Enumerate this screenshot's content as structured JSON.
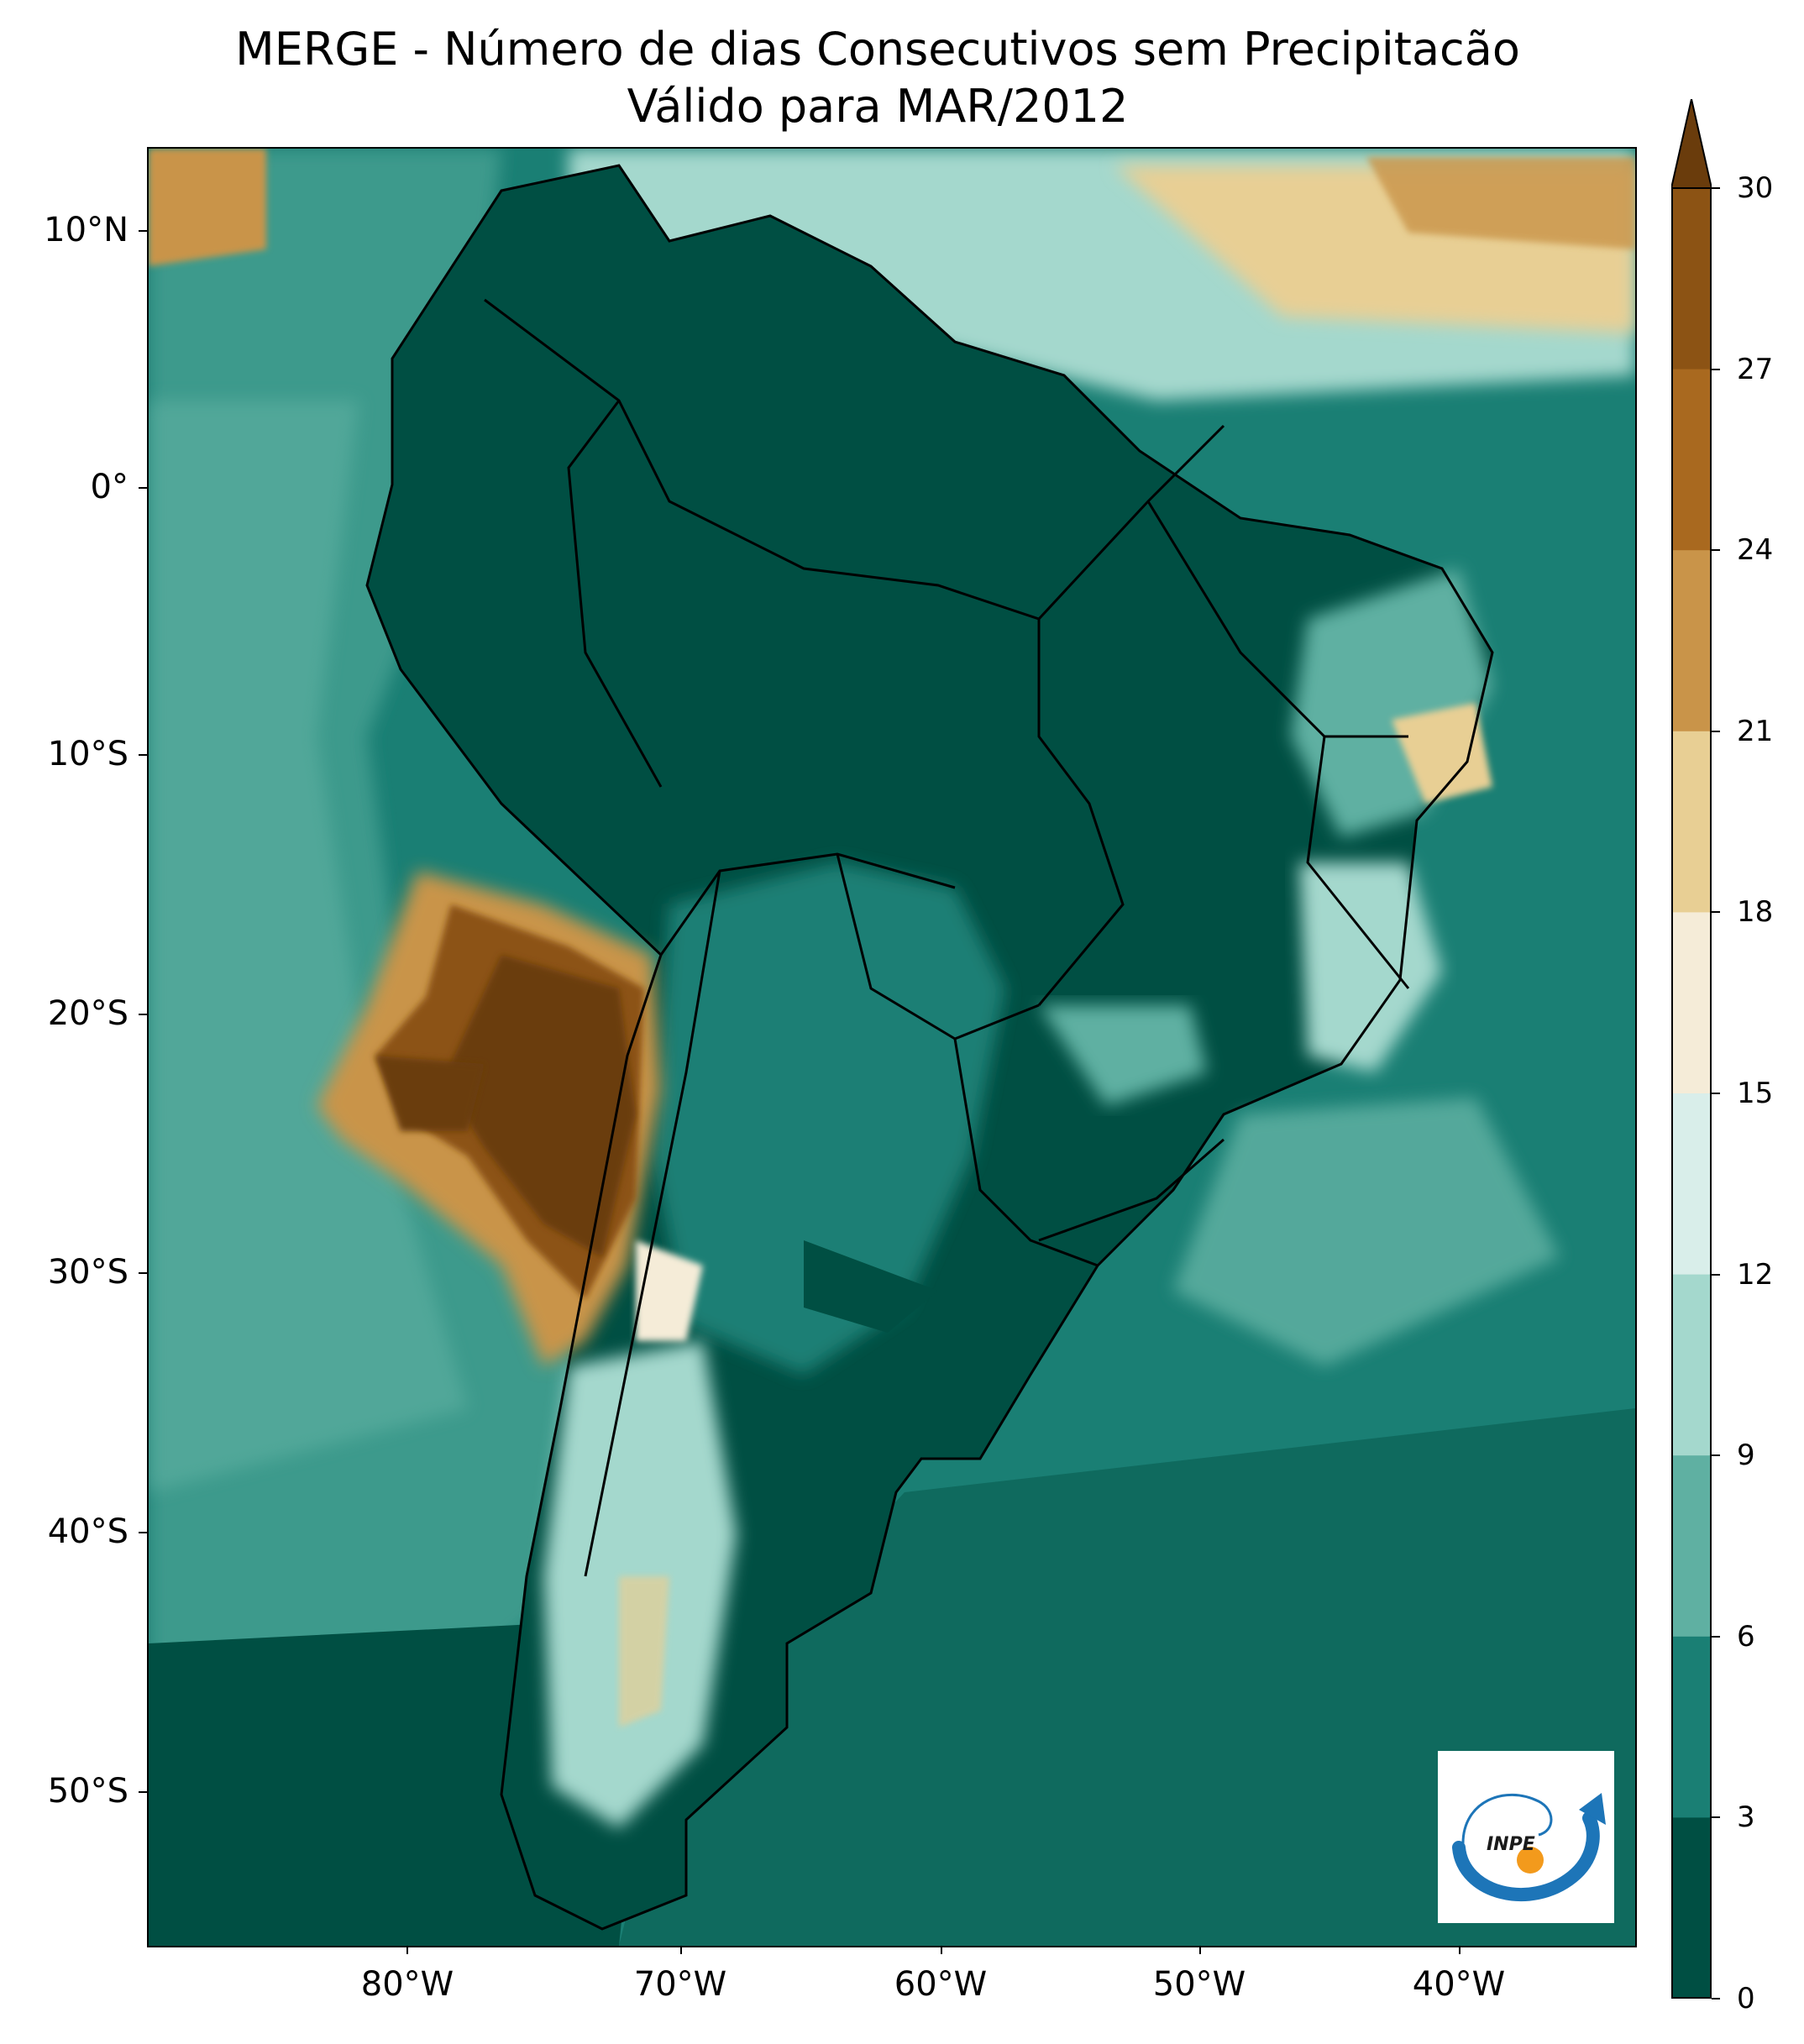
{
  "title": {
    "line1": "MERGE - Número de dias Consecutivos sem Precipitacão",
    "line2": "Válido para MAR/2012"
  },
  "axes": {
    "lat_labels": [
      "10°N",
      "0°",
      "10°S",
      "20°S",
      "30°S",
      "40°S",
      "50°S"
    ],
    "lon_labels": [
      "80°W",
      "70°W",
      "60°W",
      "50°W",
      "40°W"
    ]
  },
  "colorbar": {
    "labels": [
      "30",
      "27",
      "24",
      "21",
      "18",
      "15",
      "12",
      "9",
      "6",
      "3",
      "0"
    ],
    "colors_top_to_bottom": [
      "#6a3c0c",
      "#8c5314",
      "#a9691f",
      "#c99449",
      "#e8cf94",
      "#f5ecd8",
      "#d9eeea",
      "#a4d8cd",
      "#5fb0a2",
      "#1a7f74",
      "#004f43"
    ],
    "extend": "max"
  },
  "logo": {
    "text": "INPE"
  },
  "legend_colors": {
    "ocean": "#0b6a5f",
    "dry": "#6a3c0c"
  }
}
